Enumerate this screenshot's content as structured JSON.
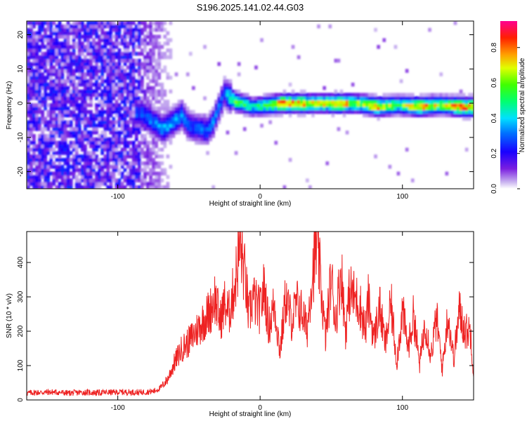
{
  "title": "S196.2025.141.02.44.G03",
  "chart_data": [
    {
      "type": "heatmap",
      "xlabel": "Height of straight line (km)",
      "ylabel": "Frequency (Hz)",
      "xlim": [
        -164,
        150
      ],
      "ylim": [
        -25,
        24
      ],
      "xticks": [
        -100,
        0,
        100
      ],
      "yticks": [
        -20,
        -10,
        0,
        10,
        20
      ],
      "colorbar": {
        "label": "Normalized spectral amplitude",
        "range": [
          0.0,
          0.95
        ],
        "ticks": [
          0.0,
          0.2,
          0.4,
          0.6,
          0.8
        ]
      },
      "ridge": [
        {
          "x": -83,
          "f": -3.0,
          "a": 0.3
        },
        {
          "x": -68,
          "f": -7.5,
          "a": 0.38
        },
        {
          "x": -55,
          "f": -3.5,
          "a": 0.36
        },
        {
          "x": -50,
          "f": -6.5,
          "a": 0.3
        },
        {
          "x": -37,
          "f": -8.0,
          "a": 0.32
        },
        {
          "x": -33,
          "f": -5.5,
          "a": 0.34
        },
        {
          "x": -25,
          "f": 3.0,
          "a": 0.3
        },
        {
          "x": -17,
          "f": 0.5,
          "a": 0.7
        },
        {
          "x": -5,
          "f": -1.0,
          "a": 0.45
        },
        {
          "x": 5,
          "f": -0.5,
          "a": 0.6
        },
        {
          "x": 15,
          "f": 0.0,
          "a": 0.85
        },
        {
          "x": 30,
          "f": 0.0,
          "a": 0.8
        },
        {
          "x": 42,
          "f": 0.0,
          "a": 0.7
        },
        {
          "x": 55,
          "f": 0.0,
          "a": 0.85
        },
        {
          "x": 70,
          "f": 0.0,
          "a": 0.65
        },
        {
          "x": 83,
          "f": -1.0,
          "a": 0.8
        },
        {
          "x": 97,
          "f": -0.5,
          "a": 0.55
        },
        {
          "x": 112,
          "f": -1.0,
          "a": 0.85
        },
        {
          "x": 127,
          "f": -0.5,
          "a": 0.65
        },
        {
          "x": 142,
          "f": -1.0,
          "a": 0.85
        }
      ]
    },
    {
      "type": "line",
      "xlabel": "Height of straight line (km)",
      "ylabel": "SNR (10 * v/v)",
      "xlim": [
        -164,
        150
      ],
      "ylim": [
        0,
        490
      ],
      "xticks": [
        -100,
        0,
        100
      ],
      "yticks": [
        0,
        100,
        200,
        300,
        400
      ],
      "color": "#ee2222",
      "x": [
        -164,
        -155,
        -145,
        -135,
        -125,
        -115,
        -105,
        -95,
        -85,
        -75,
        -70,
        -65,
        -60,
        -55,
        -50,
        -45,
        -40,
        -35,
        -32,
        -28,
        -25,
        -22,
        -18,
        -14,
        -10,
        -8,
        -5,
        -2,
        0,
        3,
        6,
        10,
        14,
        18,
        22,
        26,
        30,
        33,
        36,
        38,
        40,
        43,
        46,
        50,
        53,
        57,
        60,
        63,
        66,
        70,
        74,
        76,
        80,
        84,
        88,
        92,
        96,
        100,
        104,
        108,
        112,
        116,
        120,
        124,
        128,
        132,
        136,
        140,
        144,
        148,
        150
      ],
      "y": [
        20,
        22,
        23,
        20,
        22,
        21,
        22,
        23,
        22,
        25,
        35,
        60,
        110,
        150,
        170,
        200,
        230,
        260,
        300,
        230,
        280,
        250,
        330,
        450,
        340,
        240,
        300,
        270,
        260,
        330,
        210,
        280,
        140,
        300,
        230,
        280,
        250,
        200,
        350,
        400,
        460,
        320,
        180,
        360,
        230,
        380,
        200,
        320,
        300,
        280,
        200,
        290,
        180,
        270,
        160,
        280,
        110,
        260,
        150,
        250,
        100,
        230,
        130,
        240,
        90,
        250,
        120,
        260,
        200,
        200,
        70
      ]
    }
  ]
}
